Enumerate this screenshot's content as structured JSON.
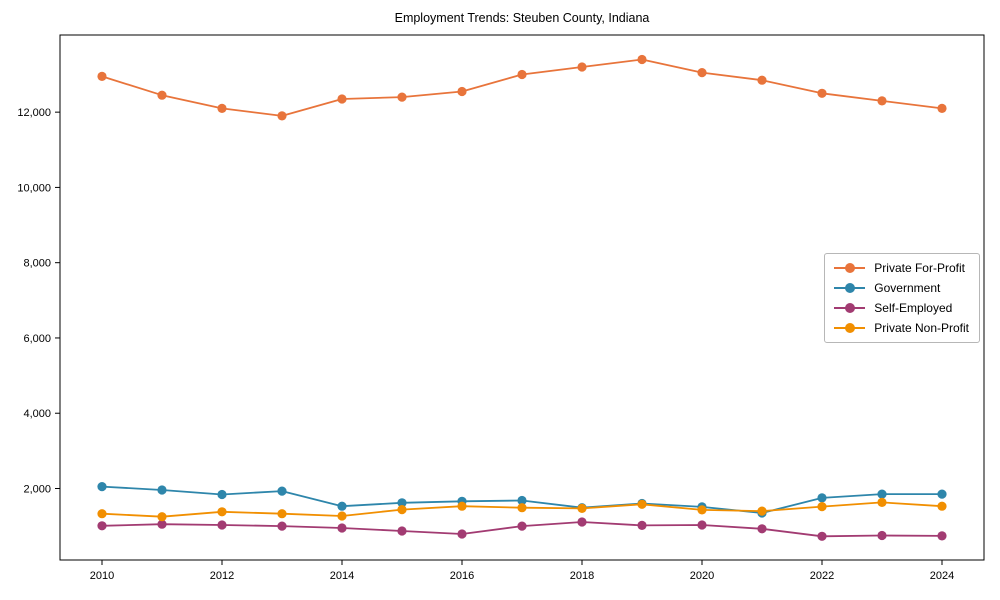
{
  "title": "Employment Trends: Steuben County, Indiana",
  "chart_data": {
    "type": "line",
    "title": "Employment Trends: Steuben County, Indiana",
    "xlabel": "",
    "ylabel": "",
    "x": [
      2010,
      2011,
      2012,
      2013,
      2014,
      2015,
      2016,
      2017,
      2018,
      2019,
      2020,
      2021,
      2022,
      2023,
      2024
    ],
    "series": [
      {
        "name": "Private For-Profit",
        "color": "#E8743B",
        "values": [
          12950,
          12450,
          12100,
          11900,
          12350,
          12400,
          12550,
          13000,
          13200,
          13400,
          13050,
          12850,
          12500,
          12300,
          12100
        ]
      },
      {
        "name": "Government",
        "color": "#2E86AB",
        "values": [
          2050,
          1960,
          1840,
          1930,
          1530,
          1620,
          1660,
          1680,
          1490,
          1600,
          1510,
          1350,
          1750,
          1850,
          1850
        ]
      },
      {
        "name": "Self-Employed",
        "color": "#A23B72",
        "values": [
          1010,
          1050,
          1030,
          1000,
          950,
          870,
          790,
          1000,
          1110,
          1020,
          1030,
          930,
          730,
          750,
          740
        ]
      },
      {
        "name": "Private Non-Profit",
        "color": "#F18F01",
        "values": [
          1330,
          1250,
          1380,
          1330,
          1270,
          1440,
          1530,
          1490,
          1470,
          1580,
          1430,
          1400,
          1520,
          1630,
          1530
        ]
      }
    ],
    "xticks": [
      2010,
      2012,
      2014,
      2016,
      2018,
      2020,
      2022,
      2024
    ],
    "yticks": [
      2000,
      4000,
      6000,
      8000,
      10000,
      12000
    ],
    "xlim": [
      2009.3,
      2024.7
    ],
    "ylim": [
      100,
      14050
    ],
    "grid": false,
    "legend_position": "center right",
    "axis_color": "#000000"
  }
}
